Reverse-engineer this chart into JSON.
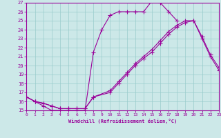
{
  "xlabel": "Windchill (Refroidissement éolien,°C)",
  "bg_color": "#cce8e8",
  "line_color": "#990099",
  "xlim": [
    0,
    23
  ],
  "ylim": [
    15,
    27
  ],
  "xticks": [
    0,
    1,
    2,
    3,
    4,
    5,
    6,
    7,
    8,
    9,
    10,
    11,
    12,
    13,
    14,
    15,
    16,
    17,
    18,
    19,
    20,
    21,
    22,
    23
  ],
  "yticks": [
    15,
    16,
    17,
    18,
    19,
    20,
    21,
    22,
    23,
    24,
    25,
    26,
    27
  ],
  "grid_color": "#99cccc",
  "curves": [
    {
      "x": [
        0,
        1,
        2,
        3,
        4,
        5,
        6,
        7,
        8,
        9,
        10,
        11,
        12,
        13,
        14,
        15,
        16,
        17,
        18
      ],
      "y": [
        16.5,
        16.0,
        15.5,
        15.0,
        15.0,
        15.0,
        15.0,
        15.0,
        21.5,
        24.0,
        25.6,
        26.0,
        26.0,
        26.0,
        26.0,
        27.2,
        27.0,
        26.0,
        25.0
      ]
    },
    {
      "x": [
        0,
        1,
        2,
        3,
        4,
        5,
        6,
        7,
        8,
        10,
        11,
        12,
        13,
        14,
        15,
        16,
        17,
        18,
        19,
        20,
        21,
        22,
        23
      ],
      "y": [
        16.5,
        16.0,
        15.8,
        15.5,
        15.2,
        15.2,
        15.2,
        15.2,
        16.5,
        17.2,
        18.2,
        19.2,
        20.2,
        21.0,
        21.8,
        22.8,
        23.8,
        24.5,
        25.0,
        25.0,
        23.2,
        21.2,
        19.8
      ]
    },
    {
      "x": [
        0,
        1,
        2,
        3,
        4,
        5,
        6,
        7,
        8,
        10,
        11,
        12,
        13,
        14,
        15,
        16,
        17,
        18,
        19,
        20,
        21,
        22,
        23
      ],
      "y": [
        16.5,
        16.0,
        15.8,
        15.5,
        15.2,
        15.2,
        15.2,
        15.2,
        16.5,
        17.0,
        18.0,
        19.0,
        20.0,
        20.8,
        21.5,
        22.5,
        23.5,
        24.3,
        24.8,
        25.0,
        23.0,
        21.0,
        19.5
      ]
    }
  ]
}
